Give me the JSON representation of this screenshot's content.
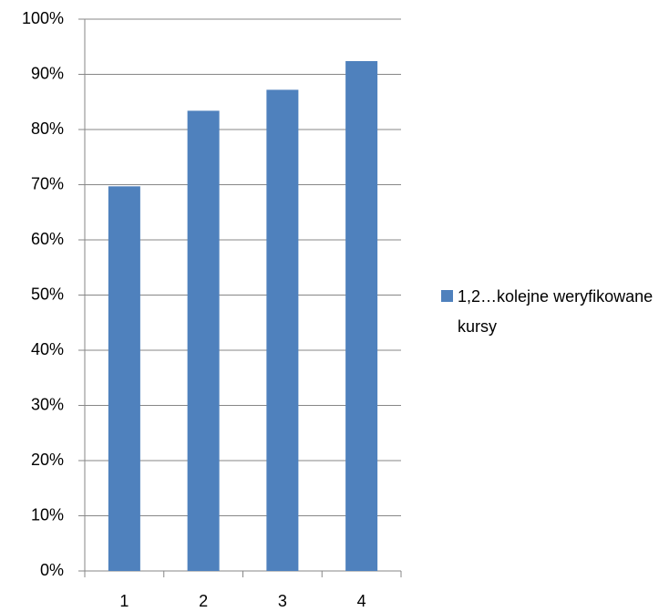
{
  "chart_data": {
    "type": "bar",
    "categories": [
      "1",
      "2",
      "3",
      "4"
    ],
    "series": [
      {
        "name": "1,2…kolejne weryfikowane kursy",
        "color": "#4f81bd",
        "values": [
          69.7,
          83.4,
          87.2,
          92.4
        ]
      }
    ],
    "ylim": [
      0,
      100
    ],
    "yticks": [
      {
        "value": 0,
        "label": "0%"
      },
      {
        "value": 10,
        "label": "10%"
      },
      {
        "value": 20,
        "label": "20%"
      },
      {
        "value": 30,
        "label": "30%"
      },
      {
        "value": 40,
        "label": "40%"
      },
      {
        "value": 50,
        "label": "50%"
      },
      {
        "value": 60,
        "label": "60%"
      },
      {
        "value": 70,
        "label": "70%"
      },
      {
        "value": 80,
        "label": "80%"
      },
      {
        "value": 90,
        "label": "90%"
      },
      {
        "value": 100,
        "label": "100%"
      }
    ],
    "grid": true,
    "legend": "right"
  }
}
